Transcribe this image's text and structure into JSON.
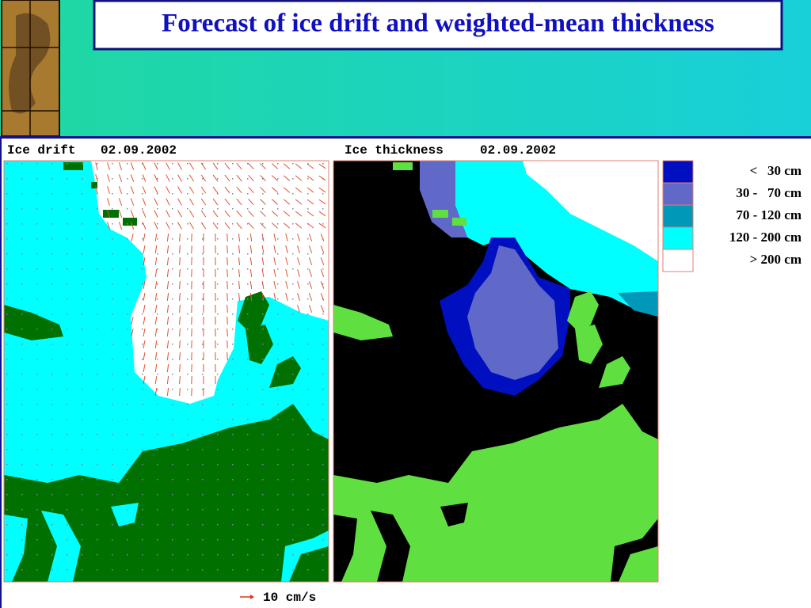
{
  "title": "Forecast of ice drift and weighted-mean thickness",
  "panels": [
    {
      "label": "Ice drift",
      "date": "02.09.2002"
    },
    {
      "label": "Ice thickness",
      "date": "02.09.2002"
    }
  ],
  "legend": [
    {
      "label": "<   30 cm",
      "color": "#0010c0"
    },
    {
      "label": "30 -   70 cm",
      "color": "#6068c8"
    },
    {
      "label": "70 - 120 cm",
      "color": "#0098b8"
    },
    {
      "label": "120 - 200 cm",
      "color": "#00ffff"
    },
    {
      "label": "> 200 cm",
      "color": "#ffffff"
    }
  ],
  "scale_label": "10 cm/s"
}
